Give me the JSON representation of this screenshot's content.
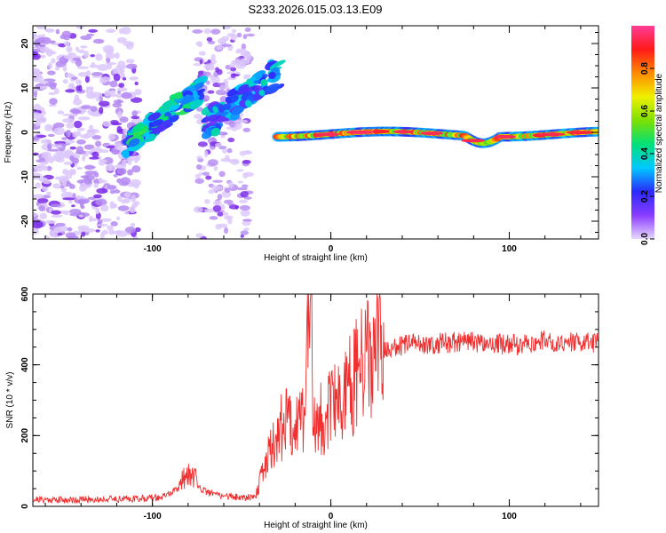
{
  "title": "S233.2026.015.03.13.E09",
  "chart_data": [
    {
      "type": "heatmap",
      "id": "spectrogram",
      "xlabel": "Height of straight line (km)",
      "ylabel": "Frequency (Hz)",
      "xlim": [
        -167,
        150
      ],
      "ylim": [
        -24,
        24
      ],
      "xticks": [
        -100,
        0,
        100
      ],
      "yticks": [
        -20,
        -10,
        0,
        10,
        20
      ],
      "colorbar": {
        "label": "Normalized spectral amplitude",
        "range": [
          0.0,
          1.0
        ],
        "ticks": [
          0.0,
          0.2,
          0.4,
          0.6,
          0.8
        ],
        "tick_labels": [
          "0.0",
          "0.2",
          "0.4",
          "0.6",
          "0.8"
        ],
        "colormap": [
          "#e8d8ff",
          "#8a3cff",
          "#2a2aff",
          "#00c8ff",
          "#00e07a",
          "#7ee000",
          "#f0f000",
          "#ff8a00",
          "#ff1a1a",
          "#ff3c96"
        ]
      },
      "features": [
        {
          "name": "noise-field",
          "x": [
            -167,
            -110
          ],
          "y": [
            -24,
            24
          ],
          "amplitude": 0.1
        },
        {
          "name": "rising-track-a",
          "x": [
            -115,
            -72
          ],
          "y": [
            -3,
            10
          ],
          "amplitude": 0.35
        },
        {
          "name": "rising-track-b",
          "x": [
            -70,
            -30
          ],
          "y": [
            2,
            13
          ],
          "amplitude": 0.3
        },
        {
          "name": "flat-carrier",
          "x": [
            -30,
            150
          ],
          "y": [
            -1,
            1
          ],
          "amplitude": 0.9
        }
      ]
    },
    {
      "type": "line",
      "id": "snr",
      "xlabel": "Height of straight line (km)",
      "ylabel": "SNR (10 * v/v)",
      "xlim": [
        -167,
        150
      ],
      "ylim": [
        0,
        600
      ],
      "xticks": [
        -100,
        0,
        100
      ],
      "yticks": [
        0,
        200,
        400,
        600
      ],
      "color": "#f03030",
      "series": [
        {
          "name": "SNR",
          "x": [
            -167,
            -150,
            -130,
            -110,
            -95,
            -85,
            -80,
            -75,
            -70,
            -60,
            -50,
            -42,
            -38,
            -35,
            -30,
            -25,
            -20,
            -15,
            -12,
            -10,
            -8,
            -5,
            0,
            5,
            10,
            15,
            20,
            25,
            30,
            40,
            50,
            60,
            70,
            80,
            90,
            100,
            110,
            120,
            130,
            140,
            150
          ],
          "y": [
            20,
            18,
            20,
            22,
            25,
            50,
            80,
            60,
            40,
            30,
            25,
            30,
            100,
            150,
            200,
            250,
            240,
            260,
            600,
            300,
            230,
            250,
            270,
            300,
            340,
            370,
            410,
            430,
            440,
            455,
            460,
            460,
            465,
            465,
            462,
            455,
            460,
            468,
            465,
            462,
            460
          ]
        }
      ]
    }
  ]
}
